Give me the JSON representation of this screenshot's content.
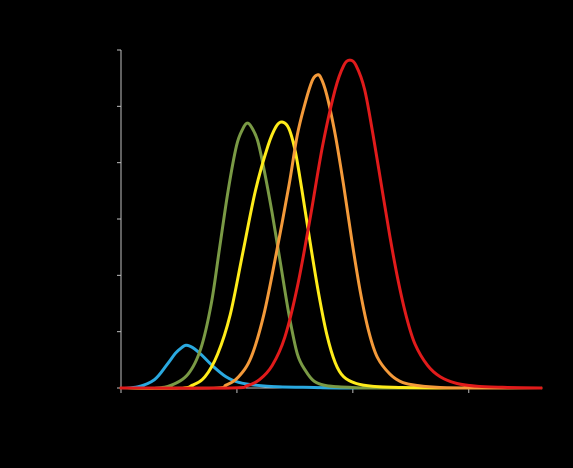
{
  "chart_data": {
    "type": "line",
    "title": "",
    "xlabel": "",
    "ylabel": "",
    "xlim": [
      0,
      100
    ],
    "ylim": [
      0,
      6
    ],
    "x_ticks": [
      0,
      27.6,
      55.2,
      82.8
    ],
    "y_ticks": [
      0,
      1,
      2,
      3,
      4,
      5,
      6
    ],
    "grid": false,
    "legend": "none",
    "axis_color": "#bfbfbf",
    "series": [
      {
        "color": "#2aa9e0",
        "points": [
          [
            0,
            0
          ],
          [
            4,
            0.02
          ],
          [
            8,
            0.15
          ],
          [
            11,
            0.42
          ],
          [
            13,
            0.62
          ],
          [
            14.5,
            0.72
          ],
          [
            15.5,
            0.76
          ],
          [
            17,
            0.72
          ],
          [
            19,
            0.6
          ],
          [
            22,
            0.38
          ],
          [
            25,
            0.2
          ],
          [
            28,
            0.1
          ],
          [
            32,
            0.05
          ],
          [
            38,
            0.02
          ],
          [
            46,
            0.01
          ],
          [
            55,
            0
          ],
          [
            100,
            0
          ]
        ]
      },
      {
        "color": "#7a9a45",
        "points": [
          [
            0,
            0
          ],
          [
            8,
            0
          ],
          [
            12,
            0.05
          ],
          [
            16,
            0.25
          ],
          [
            19,
            0.7
          ],
          [
            21.5,
            1.5
          ],
          [
            23.5,
            2.5
          ],
          [
            25.5,
            3.5
          ],
          [
            27.5,
            4.3
          ],
          [
            29,
            4.6
          ],
          [
            30,
            4.7
          ],
          [
            31,
            4.64
          ],
          [
            32.5,
            4.4
          ],
          [
            34,
            3.9
          ],
          [
            36,
            3.1
          ],
          [
            38,
            2.2
          ],
          [
            40,
            1.3
          ],
          [
            42,
            0.6
          ],
          [
            44,
            0.3
          ],
          [
            46,
            0.12
          ],
          [
            49,
            0.04
          ],
          [
            55,
            0.01
          ],
          [
            62,
            0
          ],
          [
            100,
            0
          ]
        ]
      },
      {
        "color": "#ffec1a",
        "points": [
          [
            0,
            0
          ],
          [
            14,
            0
          ],
          [
            17,
            0.05
          ],
          [
            20,
            0.2
          ],
          [
            23,
            0.6
          ],
          [
            26,
            1.3
          ],
          [
            29,
            2.4
          ],
          [
            32,
            3.5
          ],
          [
            35,
            4.3
          ],
          [
            37,
            4.65
          ],
          [
            38.5,
            4.72
          ],
          [
            40,
            4.6
          ],
          [
            41.5,
            4.2
          ],
          [
            43,
            3.55
          ],
          [
            45,
            2.6
          ],
          [
            47,
            1.7
          ],
          [
            49,
            0.95
          ],
          [
            51,
            0.45
          ],
          [
            53,
            0.2
          ],
          [
            56,
            0.08
          ],
          [
            60,
            0.03
          ],
          [
            66,
            0.01
          ],
          [
            75,
            0
          ],
          [
            100,
            0
          ]
        ]
      },
      {
        "color": "#f49a3a",
        "points": [
          [
            0,
            0
          ],
          [
            22,
            0
          ],
          [
            25,
            0.05
          ],
          [
            28,
            0.2
          ],
          [
            31,
            0.55
          ],
          [
            34,
            1.3
          ],
          [
            37,
            2.4
          ],
          [
            40,
            3.6
          ],
          [
            42,
            4.5
          ],
          [
            44,
            5.1
          ],
          [
            45.5,
            5.45
          ],
          [
            46.5,
            5.55
          ],
          [
            47.5,
            5.52
          ],
          [
            49,
            5.2
          ],
          [
            51,
            4.5
          ],
          [
            53,
            3.6
          ],
          [
            55,
            2.6
          ],
          [
            57,
            1.7
          ],
          [
            59,
            1.0
          ],
          [
            61,
            0.55
          ],
          [
            64,
            0.25
          ],
          [
            67,
            0.1
          ],
          [
            71,
            0.04
          ],
          [
            76,
            0.01
          ],
          [
            85,
            0
          ],
          [
            100,
            0
          ]
        ]
      },
      {
        "color": "#e11b1b",
        "points": [
          [
            0,
            0
          ],
          [
            26,
            0
          ],
          [
            30,
            0.04
          ],
          [
            33,
            0.15
          ],
          [
            36,
            0.4
          ],
          [
            39,
            0.9
          ],
          [
            42,
            1.8
          ],
          [
            45,
            3.0
          ],
          [
            48,
            4.3
          ],
          [
            51,
            5.3
          ],
          [
            53,
            5.72
          ],
          [
            54.5,
            5.82
          ],
          [
            56,
            5.72
          ],
          [
            58,
            5.3
          ],
          [
            60,
            4.5
          ],
          [
            62,
            3.6
          ],
          [
            64,
            2.7
          ],
          [
            66,
            1.9
          ],
          [
            68,
            1.25
          ],
          [
            70,
            0.78
          ],
          [
            73,
            0.4
          ],
          [
            76,
            0.2
          ],
          [
            80,
            0.08
          ],
          [
            85,
            0.03
          ],
          [
            92,
            0.01
          ],
          [
            100,
            0
          ]
        ]
      }
    ]
  }
}
